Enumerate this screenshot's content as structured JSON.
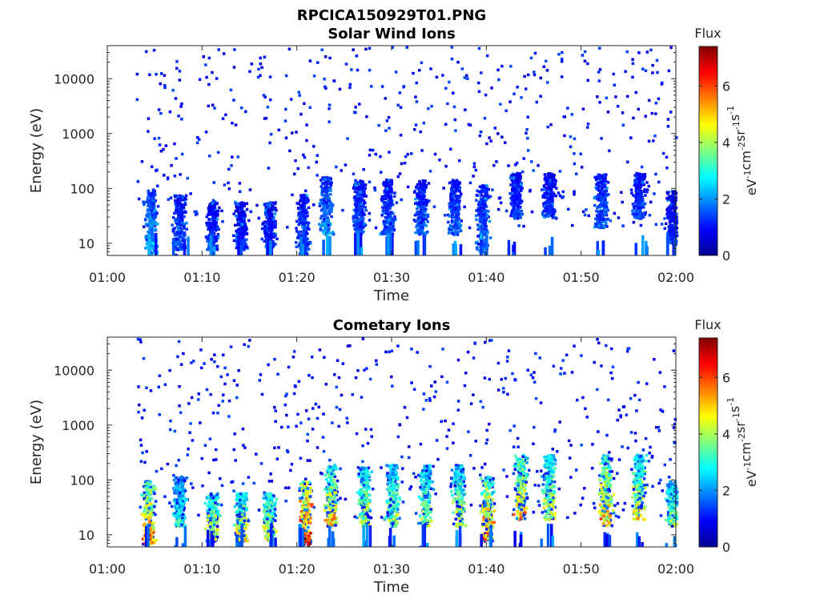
{
  "figure": {
    "title": "RPCICA150929T01.PNG"
  },
  "chart_data": [
    {
      "type": "heatmap",
      "title": "Solar Wind Ions",
      "xlabel": "Time",
      "ylabel": "Energy (eV)",
      "x_tick_labels": [
        "01:00",
        "01:10",
        "01:20",
        "01:30",
        "01:40",
        "01:50",
        "02:00"
      ],
      "x_range": [
        "01:00",
        "02:00"
      ],
      "y_scale": "log",
      "y_tick_labels": [
        "10",
        "100",
        "1000",
        "10000"
      ],
      "ylim": [
        6,
        40000
      ],
      "colorbar": {
        "title": "Flux",
        "label": "eV-1cm-2sr-1s-1",
        "label_parts": [
          {
            "text": "eV",
            "sup": "-1"
          },
          {
            "text": "cm",
            "sup": "-2"
          },
          {
            "text": "sr",
            "sup": "-1"
          },
          {
            "text": "s",
            "sup": "-1"
          }
        ],
        "tick_labels": [
          "0",
          "2",
          "4",
          "6"
        ],
        "range": [
          0,
          7.4
        ],
        "colormap": "jet"
      },
      "bursts": [
        {
          "t_min": 4.5,
          "e_lo": 6,
          "e_hi": 100,
          "flux": 2.3
        },
        {
          "t_min": 7.5,
          "e_lo": 8,
          "e_hi": 80,
          "flux": 1.5
        },
        {
          "t_min": 11.0,
          "e_lo": 8,
          "e_hi": 60,
          "flux": 1.3
        },
        {
          "t_min": 14.0,
          "e_lo": 8,
          "e_hi": 60,
          "flux": 1.2
        },
        {
          "t_min": 17.0,
          "e_lo": 8,
          "e_hi": 60,
          "flux": 1.2
        },
        {
          "t_min": 20.5,
          "e_lo": 6,
          "e_hi": 80,
          "flux": 1.5
        },
        {
          "t_min": 23.0,
          "e_lo": 15,
          "e_hi": 170,
          "flux": 2.1
        },
        {
          "t_min": 26.5,
          "e_lo": 15,
          "e_hi": 150,
          "flux": 1.5
        },
        {
          "t_min": 29.5,
          "e_lo": 15,
          "e_hi": 150,
          "flux": 1.5
        },
        {
          "t_min": 33.0,
          "e_lo": 15,
          "e_hi": 150,
          "flux": 1.6
        },
        {
          "t_min": 36.5,
          "e_lo": 15,
          "e_hi": 150,
          "flux": 1.6
        },
        {
          "t_min": 39.5,
          "e_lo": 6,
          "e_hi": 120,
          "flux": 1.8
        },
        {
          "t_min": 43.0,
          "e_lo": 30,
          "e_hi": 200,
          "flux": 1.4
        },
        {
          "t_min": 46.5,
          "e_lo": 30,
          "e_hi": 200,
          "flux": 1.3
        },
        {
          "t_min": 52.0,
          "e_lo": 20,
          "e_hi": 200,
          "flux": 1.6
        },
        {
          "t_min": 56.0,
          "e_lo": 30,
          "e_hi": 200,
          "flux": 1.4
        },
        {
          "t_min": 59.5,
          "e_lo": 10,
          "e_hi": 100,
          "flux": 1.2
        }
      ]
    },
    {
      "type": "heatmap",
      "title": "Cometary Ions",
      "xlabel": "Time",
      "ylabel": "Energy (eV)",
      "x_tick_labels": [
        "01:00",
        "01:10",
        "01:20",
        "01:30",
        "01:40",
        "01:50",
        "02:00"
      ],
      "x_range": [
        "01:00",
        "02:00"
      ],
      "y_scale": "log",
      "y_tick_labels": [
        "10",
        "100",
        "1000",
        "10000"
      ],
      "ylim": [
        6,
        40000
      ],
      "colorbar": {
        "title": "Flux",
        "label": "eV-1cm-2sr-1s-1",
        "label_parts": [
          {
            "text": "eV",
            "sup": "-1"
          },
          {
            "text": "cm",
            "sup": "-2"
          },
          {
            "text": "sr",
            "sup": "-1"
          },
          {
            "text": "s",
            "sup": "-1"
          }
        ],
        "tick_labels": [
          "0",
          "2",
          "4",
          "6"
        ],
        "range": [
          0,
          7.4
        ],
        "colormap": "jet"
      },
      "bursts": [
        {
          "t_min": 4.3,
          "e_lo": 6,
          "e_hi": 100,
          "flux": 5.6
        },
        {
          "t_min": 7.5,
          "e_lo": 15,
          "e_hi": 120,
          "flux": 3.2
        },
        {
          "t_min": 11.0,
          "e_lo": 8,
          "e_hi": 60,
          "flux": 4.6
        },
        {
          "t_min": 14.0,
          "e_lo": 8,
          "e_hi": 60,
          "flux": 4.6
        },
        {
          "t_min": 17.0,
          "e_lo": 8,
          "e_hi": 60,
          "flux": 4.6
        },
        {
          "t_min": 20.8,
          "e_lo": 6,
          "e_hi": 100,
          "flux": 6.8
        },
        {
          "t_min": 23.5,
          "e_lo": 15,
          "e_hi": 200,
          "flux": 5.0
        },
        {
          "t_min": 27.0,
          "e_lo": 15,
          "e_hi": 180,
          "flux": 4.2
        },
        {
          "t_min": 30.0,
          "e_lo": 15,
          "e_hi": 200,
          "flux": 4.0
        },
        {
          "t_min": 33.5,
          "e_lo": 15,
          "e_hi": 200,
          "flux": 4.0
        },
        {
          "t_min": 37.0,
          "e_lo": 15,
          "e_hi": 200,
          "flux": 4.2
        },
        {
          "t_min": 40.0,
          "e_lo": 8,
          "e_hi": 120,
          "flux": 5.6
        },
        {
          "t_min": 43.5,
          "e_lo": 20,
          "e_hi": 300,
          "flux": 5.0
        },
        {
          "t_min": 46.5,
          "e_lo": 20,
          "e_hi": 300,
          "flux": 4.3
        },
        {
          "t_min": 52.5,
          "e_lo": 15,
          "e_hi": 300,
          "flux": 5.2
        },
        {
          "t_min": 56.0,
          "e_lo": 20,
          "e_hi": 300,
          "flux": 4.6
        },
        {
          "t_min": 59.5,
          "e_lo": 15,
          "e_hi": 100,
          "flux": 3.8
        }
      ]
    }
  ]
}
